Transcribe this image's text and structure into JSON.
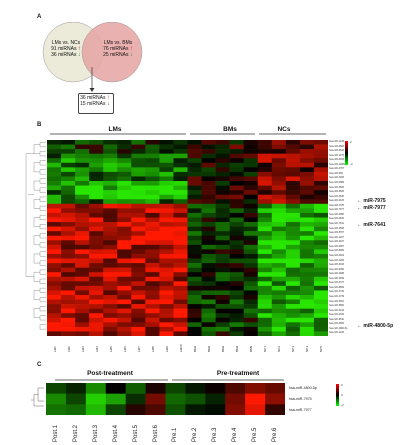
{
  "panels": {
    "a": "A",
    "b": "B",
    "c": "C"
  },
  "venn": {
    "left": {
      "title": "LMs  vs. NCs",
      "up": "91 miRNAs",
      "down": "36 miRNAs"
    },
    "right": {
      "title": "LMs  vs. BMs",
      "up": "76  miRNAs",
      "down": "25 miRNAs"
    },
    "overlap": {
      "up": "36 miRNAs",
      "down": "15 miRNAs"
    },
    "colors": {
      "left": "#ecebd9",
      "right": "#e7a9a6"
    }
  },
  "heatmap_b": {
    "groups": [
      "LMs",
      "BMs",
      "NCs"
    ],
    "columns": [
      "LM1",
      "LM2",
      "LM3",
      "LM4",
      "LM5",
      "LM6",
      "LM7",
      "LM8",
      "LM9",
      "LM10",
      "BM1",
      "BM2",
      "BM3",
      "BM4",
      "BM5",
      "NC1",
      "NC2",
      "NC3",
      "NC4",
      "NC5"
    ],
    "annotations": [
      "miR-7975",
      "miR-7977",
      "miR-7641",
      "miR-4800-5p"
    ],
    "row_labels": [
      "hsa-miR-1228",
      "hsa-miR-4800",
      "hsa-miR-4516",
      "hsa-miR-1275",
      "hsa-miR-4463",
      "hsa-miR-1268a",
      "hsa-miR-4787",
      "hsa-miR-638",
      "hsa-miR-4466",
      "hsa-miR-6089",
      "hsa-miR-4505",
      "hsa-miR-3665",
      "hsa-miR-4530",
      "hsa-miR-6125",
      "hsa-miR-7975",
      "hsa-miR-7977",
      "hsa-miR-3960",
      "hsa-miR-4492",
      "hsa-miR-7641",
      "hsa-miR-4508",
      "hsa-miR-5787",
      "hsa-miR-1207",
      "hsa-miR-4497",
      "hsa-miR-6087",
      "hsa-miR-8069",
      "hsa-miR-4484",
      "hsa-miR-4286",
      "hsa-miR-3196",
      "hsa-miR-6090",
      "hsa-miR-4488",
      "hsa-miR-4459",
      "hsa-miR-6727",
      "hsa-miR-6869",
      "hsa-miR-4732",
      "hsa-miR-4739",
      "hsa-miR-5001",
      "hsa-miR-6800",
      "hsa-miR-4443",
      "hsa-miR-1915",
      "hsa-miR-6510",
      "hsa-miR-3656",
      "hsa-miR-4800-5p",
      "hsa-miR-1246"
    ],
    "legend": {
      "max": "2",
      "min": "-2"
    }
  },
  "heatmap_c": {
    "groups": [
      "Post-treatment",
      "Pre-treatment"
    ],
    "columns": [
      "Post.1",
      "Post.2",
      "Post.3",
      "Post.4",
      "Post.5",
      "Post.6",
      "Pre.1",
      "Pre.2",
      "Pre.3",
      "Pre.4",
      "Pre.5",
      "Pre.6"
    ],
    "rows": [
      "hsa-miR-4800-5p",
      "hsa-miR-7975",
      "hsa-miR-7977"
    ],
    "legend": {
      "max": "2",
      "mid": "0",
      "min": "-2"
    },
    "values": [
      [
        -0.6,
        -0.3,
        -1.2,
        0.0,
        -0.8,
        0.2,
        -0.6,
        -0.2,
        0.1,
        0.6,
        1.0,
        0.8
      ],
      [
        -1.2,
        -0.6,
        -1.8,
        -1.4,
        -0.4,
        0.9,
        -0.9,
        -0.7,
        -0.3,
        0.9,
        2.0,
        1.1
      ],
      [
        -1.0,
        -0.9,
        -1.6,
        -0.6,
        0.3,
        0.6,
        -0.7,
        -0.2,
        -0.1,
        1.0,
        1.8,
        0.4
      ]
    ]
  }
}
